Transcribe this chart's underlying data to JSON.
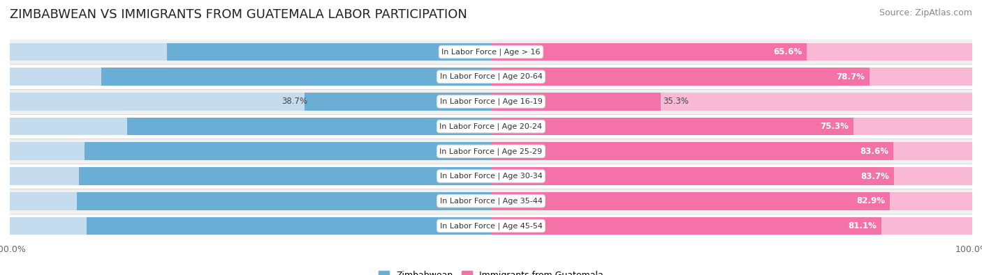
{
  "title": "ZIMBABWEAN VS IMMIGRANTS FROM GUATEMALA LABOR PARTICIPATION",
  "source": "Source: ZipAtlas.com",
  "categories": [
    "In Labor Force | Age > 16",
    "In Labor Force | Age 20-64",
    "In Labor Force | Age 16-19",
    "In Labor Force | Age 20-24",
    "In Labor Force | Age 25-29",
    "In Labor Force | Age 30-34",
    "In Labor Force | Age 35-44",
    "In Labor Force | Age 45-54"
  ],
  "zimbabwean_values": [
    67.3,
    81.0,
    38.7,
    75.6,
    84.5,
    85.6,
    86.1,
    84.0
  ],
  "guatemala_values": [
    65.6,
    78.7,
    35.3,
    75.3,
    83.6,
    83.7,
    82.9,
    81.1
  ],
  "zimbabwean_color": "#6aaed6",
  "zimbabwean_light_color": "#c5dcee",
  "guatemala_color": "#f472a7",
  "guatemala_light_color": "#f9b8d4",
  "row_bg_color": "#f0f0f0",
  "row_separator_color": "#e0e0e0",
  "max_value": 100.0,
  "bar_height": 0.72,
  "legend_labels": [
    "Zimbabwean",
    "Immigrants from Guatemala"
  ],
  "title_fontsize": 13,
  "label_fontsize": 8.5,
  "cat_fontsize": 8.0,
  "tick_fontsize": 9,
  "source_fontsize": 9,
  "value_threshold": 50
}
